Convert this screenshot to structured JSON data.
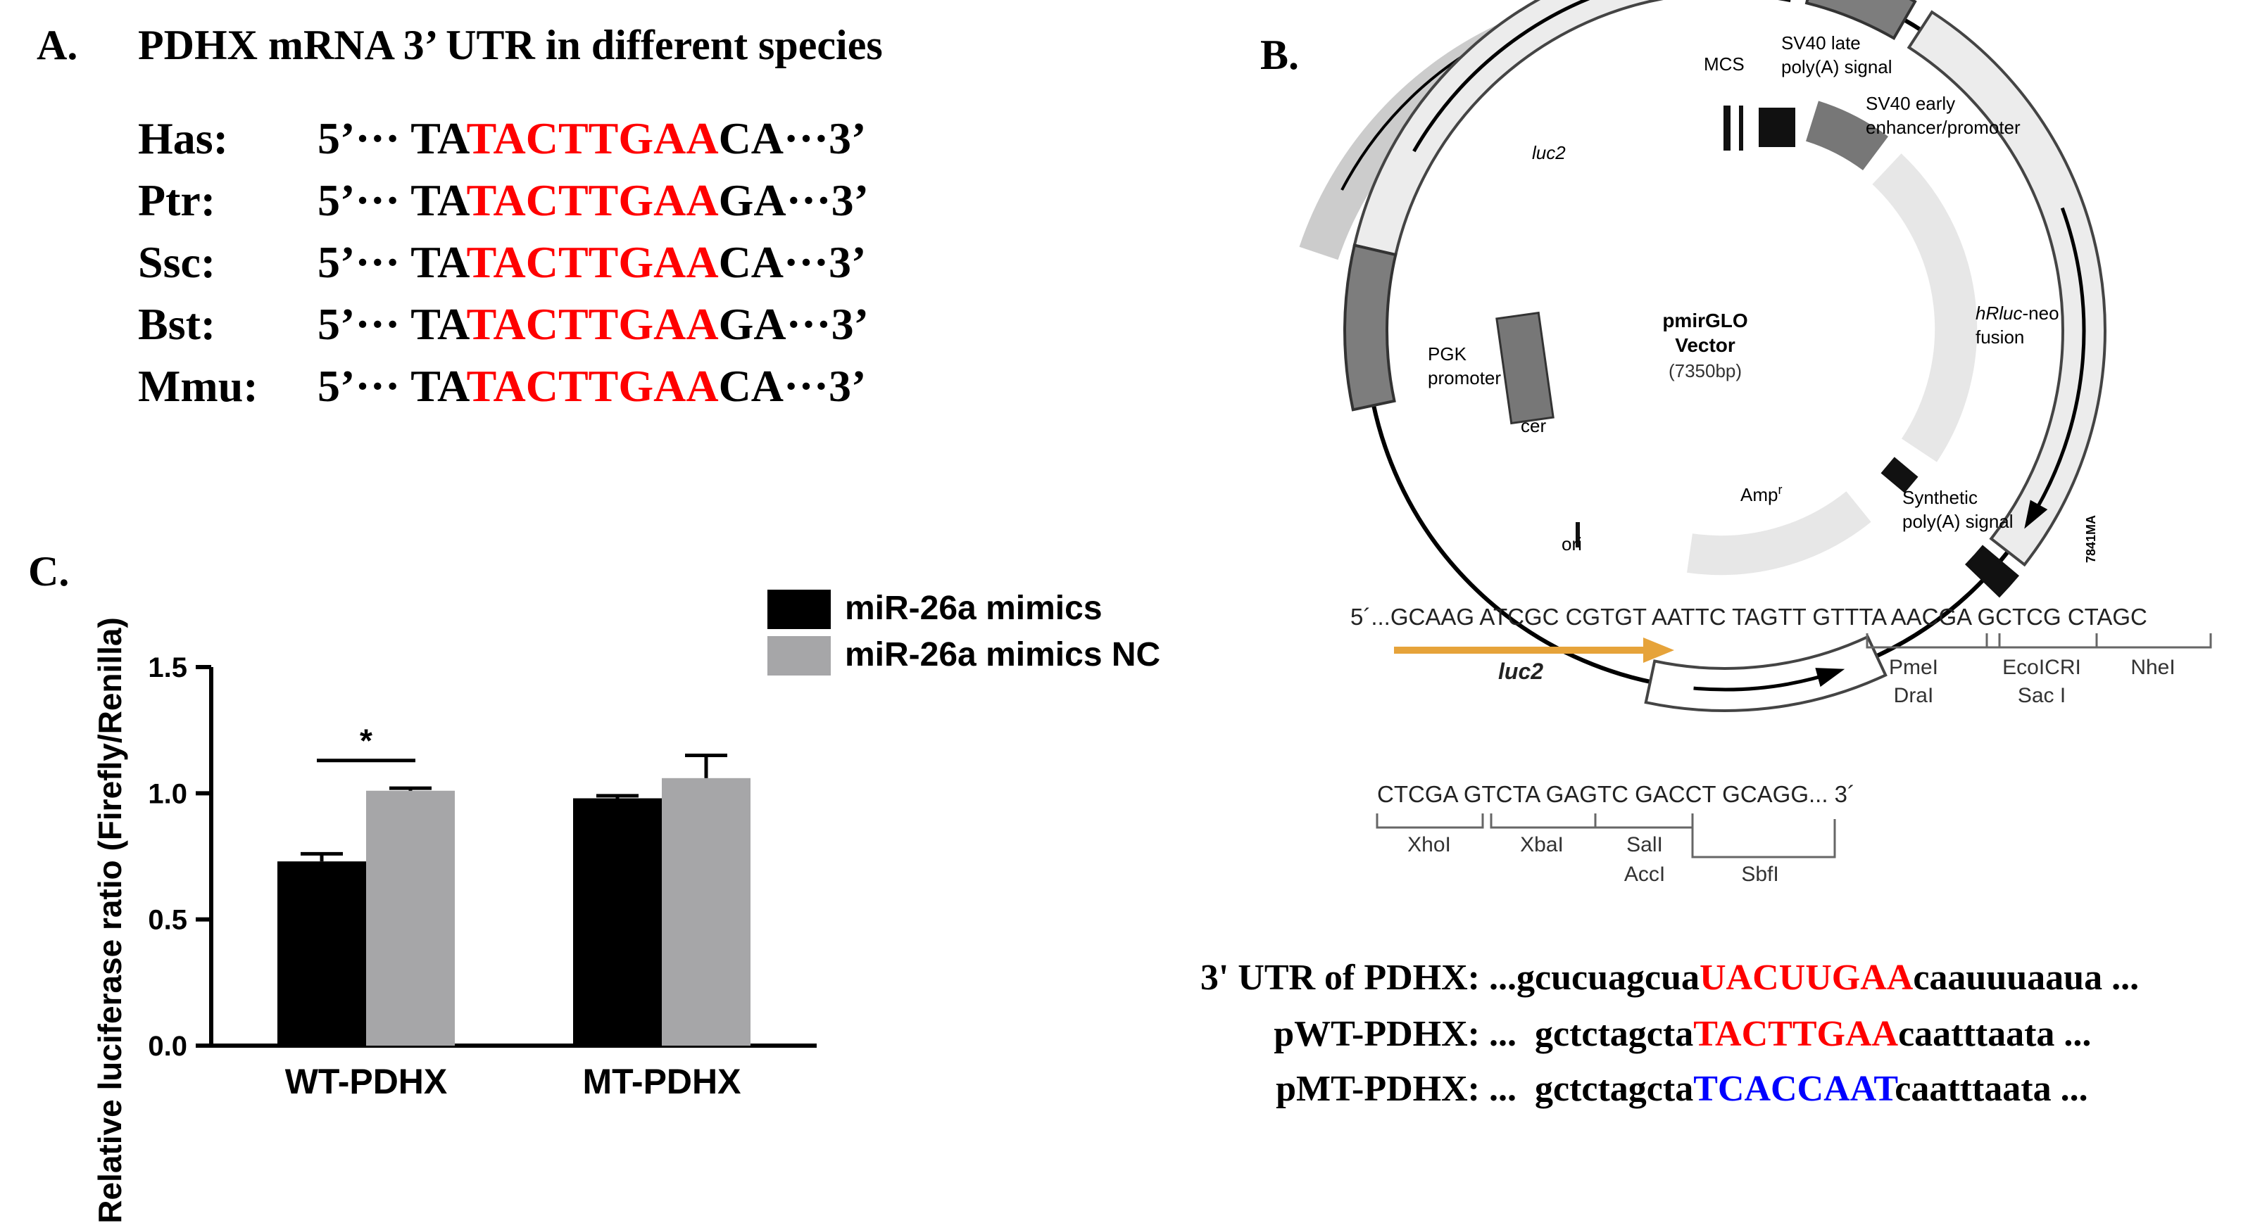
{
  "panel_a": {
    "letter": "A.",
    "title": "PDHX mRNA 3’ UTR in different species",
    "rows": [
      {
        "species": "Has:",
        "prefix": "5’··· TA",
        "motif": "TACTTGAA",
        "suffix": "CA···3’"
      },
      {
        "species": "Ptr:",
        "prefix": "5’··· TA",
        "motif": "TACTTGAA",
        "suffix": "GA···3’"
      },
      {
        "species": "Ssc:",
        "prefix": "5’··· TA",
        "motif": "TACTTGAA",
        "suffix": "CA···3’"
      },
      {
        "species": "Bst:",
        "prefix": "5’··· TA",
        "motif": "TACTTGAA",
        "suffix": "GA···3’"
      },
      {
        "species": "Mmu:",
        "prefix": "5’··· TA",
        "motif": "TACTTGAA",
        "suffix": "CA···3’"
      }
    ]
  },
  "panel_b": {
    "letter": "B.",
    "plasmid": {
      "name_line1": "pmirGLO",
      "name_line2": "Vector",
      "size": "(7350bp)",
      "labels": {
        "mcs": "MCS",
        "sv40_late_1": "SV40 late",
        "sv40_late_2": "poly(A) signal",
        "sv40_early_1": "SV40 early",
        "sv40_early_2": "enhancer/promoter",
        "luc2": "luc2",
        "hrluc_1": "hRluc",
        "hrluc_1b": "-neo",
        "hrluc_2": "fusion",
        "pgk_1": "PGK",
        "pgk_2": "promoter",
        "cer": "cer",
        "synth_1": "Synthetic",
        "synth_2": "poly(A) signal",
        "amp": "Amp",
        "amp_sup": "r",
        "ori": "ori",
        "code": "7841MA"
      }
    },
    "mcs_sequence": {
      "line1": "5´...GCAAG ATCGC CGTGT AATTC TAGTT GTTTA AACGA GCTCG CTAGC",
      "luc2": "luc2",
      "sites_row1": [
        "PmeI",
        "EcoICRI",
        "NheI"
      ],
      "sites_row1b": [
        "DraI",
        "Sac I"
      ],
      "line2": "CTCGA GTCTA GAGTC GACCT GCAGG... 3´",
      "sites_row2": [
        "XhoI",
        "XbaI",
        "SalI",
        "SbfI"
      ],
      "sites_row2b": [
        "AccI"
      ]
    },
    "utr": [
      {
        "label": "3' UTR of PDHX:",
        "prefix": " ...gcucuagcua",
        "motif": "UACUUGAA",
        "suffix": "caauuuaaua ...",
        "color": "#ff0000"
      },
      {
        "label": "pWT-PDHX:",
        "prefix": " ...  gctctagcta",
        "motif": "TACTTGAA",
        "suffix": "caatttaata ...",
        "color": "#ff0000"
      },
      {
        "label": "pMT-PDHX:",
        "prefix": " ...  gctctagcta",
        "motif": "TCACCAAT",
        "suffix": "caatttaata ...",
        "color": "#0000ff"
      }
    ]
  },
  "panel_c": {
    "letter": "C."
  },
  "chart_data": {
    "type": "bar",
    "categories": [
      "WT-PDHX",
      "MT-PDHX"
    ],
    "series": [
      {
        "name": "miR-26a mimics",
        "color": "#000000",
        "values": [
          0.73,
          0.98
        ],
        "errors": [
          0.03,
          0.01
        ]
      },
      {
        "name": "miR-26a mimics NC",
        "color": "#a6a6a8",
        "values": [
          1.01,
          1.06
        ],
        "errors": [
          0.01,
          0.09
        ]
      }
    ],
    "ylabel": "Relative luciferase ratio (Firefly/Renilla)",
    "ylim": [
      0,
      1.5
    ],
    "yticks": [
      "0.0",
      "0.5",
      "1.0",
      "1.5"
    ],
    "ytick_values": [
      0,
      0.5,
      1.0,
      1.5
    ],
    "significance": {
      "category": "WT-PDHX",
      "label": "*"
    },
    "legend_placement": "top-right"
  }
}
